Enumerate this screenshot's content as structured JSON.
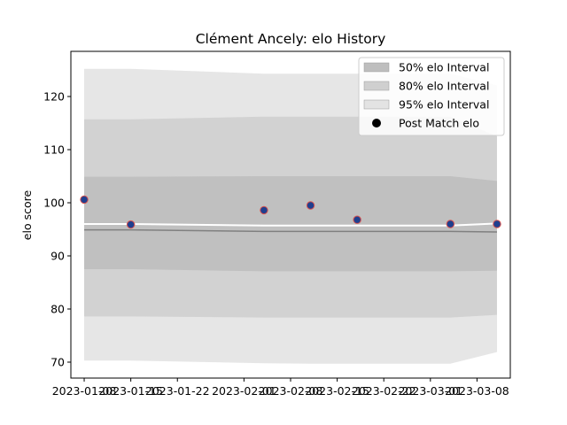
{
  "chart_data": {
    "type": "line",
    "title": "Clément Ancely: elo History",
    "xlabel": "",
    "ylabel": "elo score",
    "x_ticks": [
      "2023-01-08",
      "2023-01-15",
      "2023-01-22",
      "2023-02-01",
      "2023-02-08",
      "2023-02-15",
      "2023-02-22",
      "2023-03-01",
      "2023-03-08"
    ],
    "y_ticks": [
      70,
      80,
      90,
      100,
      110,
      120
    ],
    "xlim": [
      "2023-01-06",
      "2023-03-13"
    ],
    "ylim": [
      67.0,
      128.5
    ],
    "legend_position": "top-right",
    "colors": {
      "band_50": "#bebebe",
      "band_80": "#cfcfcf",
      "band_95": "#e3e3e3",
      "median_line": "#808080",
      "mean_line": "#ffffff",
      "marker_fill": "#1f3f8f",
      "marker_edge": "#d9534f"
    },
    "dates": [
      "2023-01-08",
      "2023-01-15",
      "2023-02-04",
      "2023-02-11",
      "2023-02-18",
      "2023-03-04",
      "2023-03-11"
    ],
    "bands": [
      {
        "name": "95% elo Interval",
        "lower": [
          70.3,
          70.3,
          69.8,
          69.7,
          69.7,
          69.7,
          71.9
        ],
        "upper": [
          125.2,
          125.2,
          124.3,
          124.3,
          124.3,
          124.3,
          122.1
        ]
      },
      {
        "name": "80% elo Interval",
        "lower": [
          78.6,
          78.6,
          78.4,
          78.4,
          78.4,
          78.4,
          78.9
        ],
        "upper": [
          115.7,
          115.7,
          116.2,
          116.2,
          116.2,
          116.2,
          112.5
        ]
      },
      {
        "name": "50% elo Interval",
        "lower": [
          87.5,
          87.5,
          87.1,
          87.1,
          87.1,
          87.1,
          87.2
        ],
        "upper": [
          104.9,
          104.9,
          105.0,
          105.0,
          105.0,
          105.0,
          104.1
        ]
      }
    ],
    "median_line": [
      94.9,
      94.9,
      94.6,
      94.6,
      94.6,
      94.6,
      94.5
    ],
    "mean_line": [
      96.0,
      96.0,
      95.7,
      95.7,
      95.7,
      95.7,
      96.1
    ],
    "post_match": {
      "name": "Post Match elo",
      "dates": [
        "2023-01-08",
        "2023-01-15",
        "2023-02-04",
        "2023-02-11",
        "2023-02-18",
        "2023-03-04"
      ],
      "values": [
        100.6,
        95.9,
        98.6,
        99.5,
        96.8,
        96.0
      ],
      "last_date": "2023-03-11"
    },
    "legend": [
      "50% elo Interval",
      "80% elo Interval",
      "95% elo Interval",
      "Post Match elo"
    ]
  }
}
